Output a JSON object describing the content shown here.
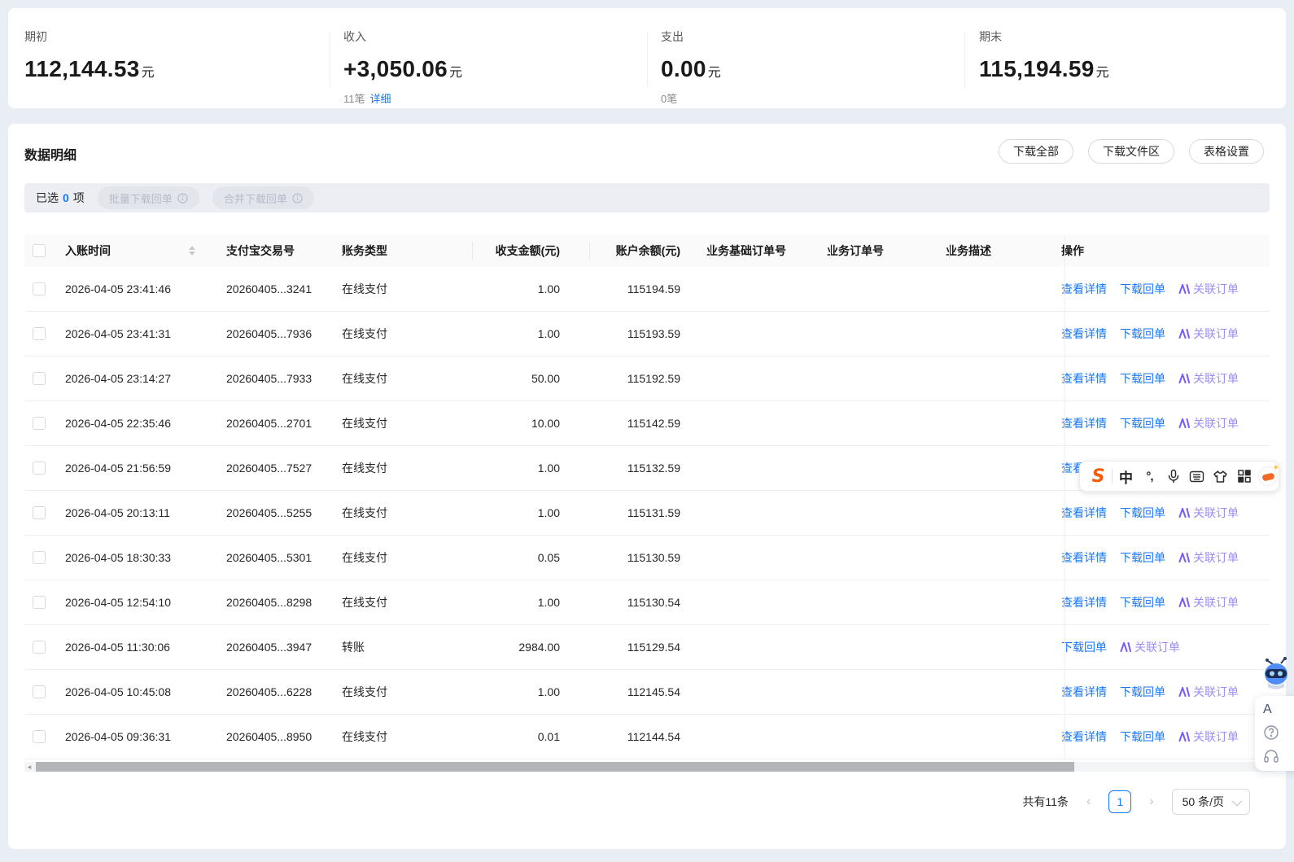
{
  "summary": {
    "sections": [
      {
        "label": "期初",
        "value": "112,144.53",
        "unit": "元"
      },
      {
        "label": "收入",
        "value": "+3,050.06",
        "unit": "元",
        "count": "11笔",
        "link": "详细"
      },
      {
        "label": "支出",
        "value": "0.00",
        "unit": "元",
        "count": "0笔"
      },
      {
        "label": "期末",
        "value": "115,194.59",
        "unit": "元"
      }
    ]
  },
  "panel": {
    "title": "数据明细",
    "buttons": {
      "download_all": "下载全部",
      "download_zone": "下载文件区",
      "table_settings": "表格设置"
    },
    "selection": {
      "prefix": "已选",
      "count": "0",
      "suffix": "项",
      "batch": "批量下载回单",
      "merge": "合并下载回单"
    }
  },
  "table": {
    "columns": [
      "入账时间",
      "支付宝交易号",
      "账务类型",
      "收支金额(元)",
      "账户余额(元)",
      "业务基础订单号",
      "业务订单号",
      "业务描述",
      "操作"
    ],
    "action_labels": {
      "detail": "查看详情",
      "receipt": "下载回单",
      "related": "关联订单"
    },
    "rows": [
      {
        "time": "2026-04-05 23:41:46",
        "txn": "20260405...3241",
        "type": "在线支付",
        "amount": "1.00",
        "balance": "115194.59",
        "actions": [
          "detail",
          "receipt",
          "related"
        ]
      },
      {
        "time": "2026-04-05 23:41:31",
        "txn": "20260405...7936",
        "type": "在线支付",
        "amount": "1.00",
        "balance": "115193.59",
        "actions": [
          "detail",
          "receipt",
          "related"
        ]
      },
      {
        "time": "2026-04-05 23:14:27",
        "txn": "20260405...7933",
        "type": "在线支付",
        "amount": "50.00",
        "balance": "115192.59",
        "actions": [
          "detail",
          "receipt",
          "related"
        ]
      },
      {
        "time": "2026-04-05 22:35:46",
        "txn": "20260405...2701",
        "type": "在线支付",
        "amount": "10.00",
        "balance": "115142.59",
        "actions": [
          "detail",
          "receipt",
          "related"
        ]
      },
      {
        "time": "2026-04-05 21:56:59",
        "txn": "20260405...7527",
        "type": "在线支付",
        "amount": "1.00",
        "balance": "115132.59",
        "actions": [
          "detail",
          "receipt",
          "related"
        ]
      },
      {
        "time": "2026-04-05 20:13:11",
        "txn": "20260405...5255",
        "type": "在线支付",
        "amount": "1.00",
        "balance": "115131.59",
        "actions": [
          "detail",
          "receipt",
          "related"
        ]
      },
      {
        "time": "2026-04-05 18:30:33",
        "txn": "20260405...5301",
        "type": "在线支付",
        "amount": "0.05",
        "balance": "115130.59",
        "actions": [
          "detail",
          "receipt",
          "related"
        ]
      },
      {
        "time": "2026-04-05 12:54:10",
        "txn": "20260405...8298",
        "type": "在线支付",
        "amount": "1.00",
        "balance": "115130.54",
        "actions": [
          "detail",
          "receipt",
          "related"
        ]
      },
      {
        "time": "2026-04-05 11:30:06",
        "txn": "20260405...3947",
        "type": "转账",
        "amount": "2984.00",
        "balance": "115129.54",
        "actions": [
          "receipt",
          "related"
        ]
      },
      {
        "time": "2026-04-05 10:45:08",
        "txn": "20260405...6228",
        "type": "在线支付",
        "amount": "1.00",
        "balance": "112145.54",
        "actions": [
          "detail",
          "receipt",
          "related"
        ]
      },
      {
        "time": "2026-04-05 09:36:31",
        "txn": "20260405...8950",
        "type": "在线支付",
        "amount": "0.01",
        "balance": "112144.54",
        "actions": [
          "detail",
          "receipt",
          "related"
        ]
      }
    ]
  },
  "pagination": {
    "total": "共有11条",
    "prev": "‹",
    "current_page": "1",
    "next": "›",
    "page_size": "50 条/页"
  },
  "ime_toolbar": {
    "logo": "S",
    "mode": "中",
    "punct": "°,"
  },
  "helper": {
    "letter": "A"
  },
  "colors": {
    "accent_blue": "#1677ff",
    "related_purple": "#9c8df2",
    "related_icon_purple": "#7a5af8",
    "sogou_orange": "#f55a08",
    "page_bg": "#e9edf4"
  }
}
